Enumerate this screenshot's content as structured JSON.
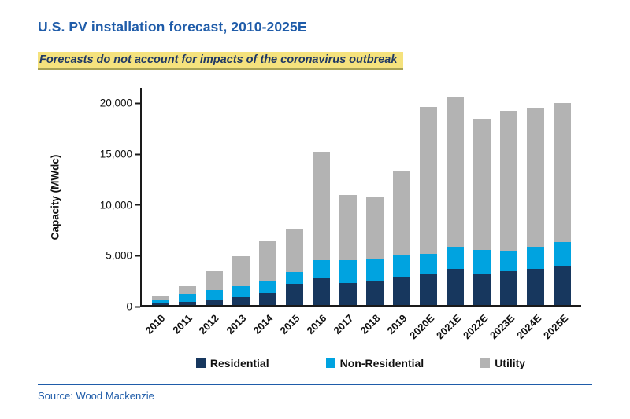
{
  "page": {
    "title": "U.S. PV installation forecast, 2010-2025E",
    "subtitle": "Forecasts do not account for impacts of the coronavirus outbreak",
    "source": "Source: Wood Mackenzie"
  },
  "colors": {
    "title_blue": "#1F5CA9",
    "subtitle_navy": "#1F3864",
    "highlight_yellow": "#F5E27D"
  },
  "chart_data": {
    "type": "bar",
    "stacked": true,
    "title": "U.S. PV installation forecast, 2010-2025E",
    "xlabel": "",
    "ylabel": "Capacity (MWdc)",
    "ylim": [
      0,
      21500
    ],
    "grid": false,
    "legend_position": "bottom",
    "yticks": {
      "values": [
        0,
        5000,
        10000,
        15000,
        20000
      ],
      "labels": [
        "0",
        "5,000",
        "10,000",
        "15,000",
        "20,000"
      ]
    },
    "categories": [
      "2010",
      "2011",
      "2012",
      "2013",
      "2014",
      "2015",
      "2016",
      "2017",
      "2018",
      "2019",
      "2020E",
      "2021E",
      "2022E",
      "2023E",
      "2024E",
      "2025E"
    ],
    "series": [
      {
        "name": "Residential",
        "color": "#17375E",
        "values": [
          250,
          300,
          500,
          750,
          1200,
          2100,
          2600,
          2200,
          2400,
          2800,
          3100,
          3600,
          3100,
          3300,
          3600,
          3900
        ]
      },
      {
        "name": "Non-Residential",
        "color": "#00A3E0",
        "values": [
          300,
          800,
          1000,
          1100,
          1150,
          1150,
          1800,
          2200,
          2200,
          2100,
          1900,
          2100,
          2300,
          2000,
          2100,
          2300
        ]
      },
      {
        "name": "Utility",
        "color": "#B3B3B3",
        "values": [
          300,
          800,
          1850,
          2950,
          3900,
          4250,
          10700,
          6400,
          6000,
          8300,
          14500,
          14700,
          12900,
          13800,
          13600,
          13700
        ]
      }
    ]
  }
}
